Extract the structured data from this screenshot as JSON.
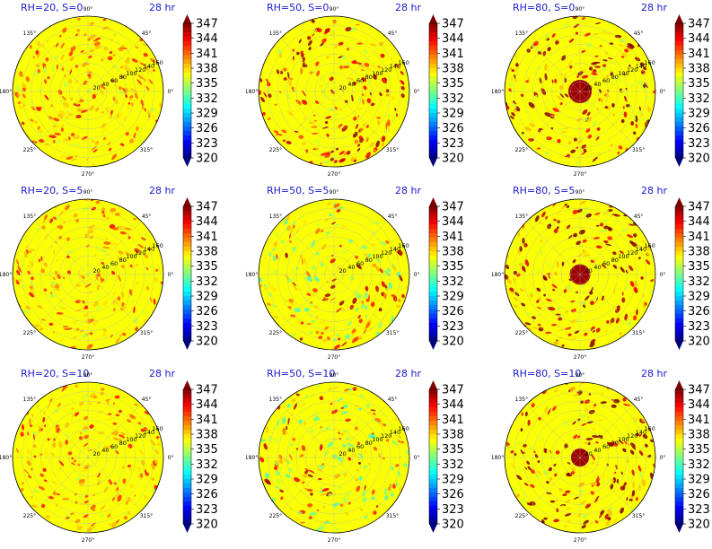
{
  "chart_data": {
    "type": "heatmap",
    "projection": "polar",
    "colormap": "jet",
    "time_label": "28 hr",
    "colorbar": {
      "min": 320,
      "max": 347,
      "ticks": [
        "347",
        "344",
        "341",
        "338",
        "335",
        "332",
        "329",
        "326",
        "323",
        "320"
      ],
      "extend": "both"
    },
    "angle_ticks": [
      "90°",
      "45°",
      "0°",
      "315°",
      "270°",
      "225°",
      "180°",
      "135°"
    ],
    "radial_ticks": [
      "20",
      "40",
      "60",
      "80",
      "100",
      "120",
      "140",
      "160"
    ],
    "panels": [
      {
        "title": "RH=20, S=0",
        "rh": 20,
        "s": 0
      },
      {
        "title": "RH=50, S=0",
        "rh": 50,
        "s": 0
      },
      {
        "title": "RH=80, S=0",
        "rh": 80,
        "s": 0
      },
      {
        "title": "RH=20, S=5",
        "rh": 20,
        "s": 5
      },
      {
        "title": "RH=50, S=5",
        "rh": 50,
        "s": 5
      },
      {
        "title": "RH=80, S=5",
        "rh": 80,
        "s": 5
      },
      {
        "title": "RH=20, S=10",
        "rh": 20,
        "s": 10
      },
      {
        "title": "RH=50, S=10",
        "rh": 50,
        "s": 10
      },
      {
        "title": "RH=80, S=10",
        "rh": 80,
        "s": 10
      }
    ]
  }
}
